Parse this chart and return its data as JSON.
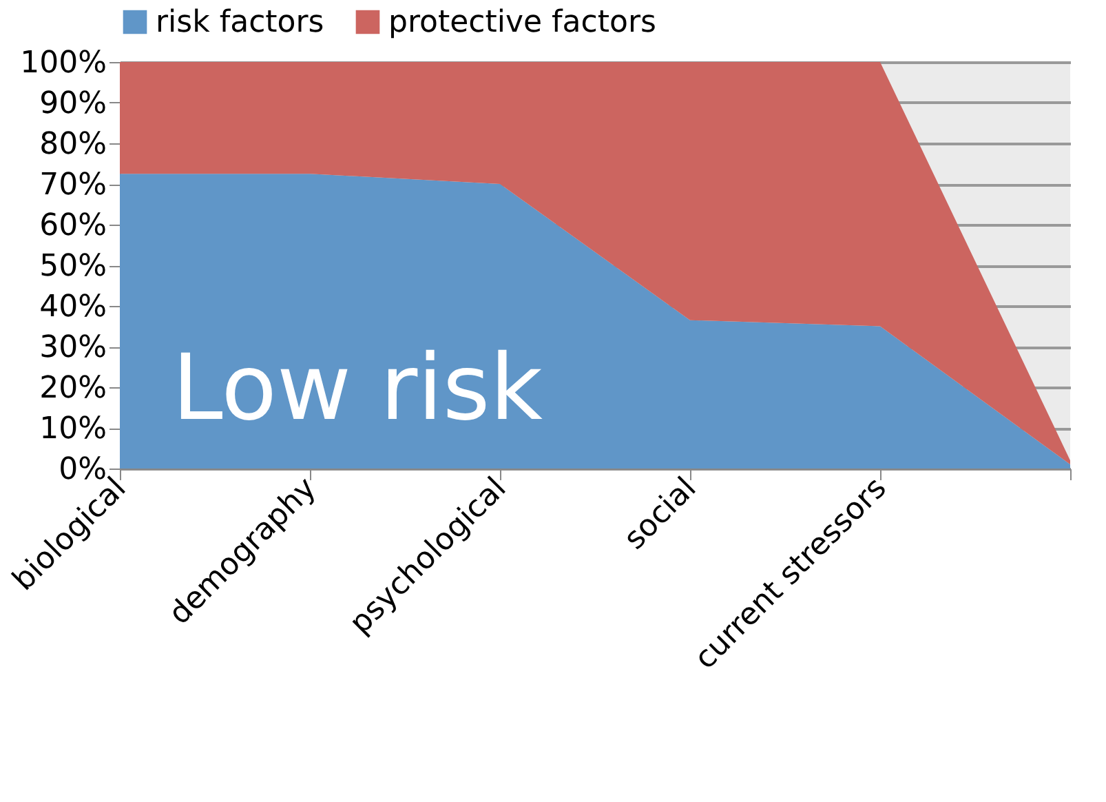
{
  "chart_data": {
    "type": "area",
    "stacked": true,
    "categories": [
      "biological",
      "demography",
      "psychological",
      "social",
      "current stressors",
      null
    ],
    "series": [
      {
        "name": "risk factors",
        "color": "#6096c8",
        "values": [
          72.5,
          72.5,
          70,
          36.5,
          35,
          1
        ]
      },
      {
        "name": "protective factors",
        "color": "#cc6560",
        "values": [
          27.5,
          27.5,
          30,
          63.5,
          65,
          1
        ]
      }
    ],
    "ylim": [
      0,
      100
    ],
    "yticks": [
      {
        "value": 0,
        "label": "0%"
      },
      {
        "value": 10,
        "label": "10%"
      },
      {
        "value": 20,
        "label": "20%"
      },
      {
        "value": 30,
        "label": "30%"
      },
      {
        "value": 40,
        "label": "40%"
      },
      {
        "value": 50,
        "label": "50%"
      },
      {
        "value": 60,
        "label": "60%"
      },
      {
        "value": 70,
        "label": "70%"
      },
      {
        "value": 80,
        "label": "80%"
      },
      {
        "value": 90,
        "label": "90%"
      },
      {
        "value": 100,
        "label": "100%"
      }
    ],
    "grid": "y",
    "legend": "top",
    "annotations": [
      "Low risk"
    ]
  }
}
